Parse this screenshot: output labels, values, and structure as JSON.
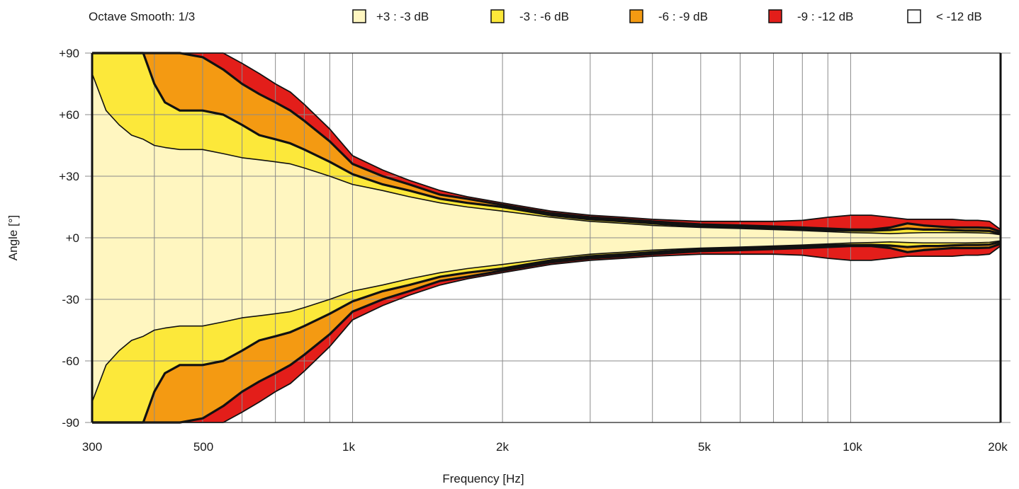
{
  "header": {
    "smoothing_label": "Octave Smooth: 1/3"
  },
  "legend": [
    {
      "label": "+3 : -3 dB",
      "color": "#FFF6C0"
    },
    {
      "label": "-3 : -6 dB",
      "color": "#FCE83A"
    },
    {
      "label": "-6 : -9 dB",
      "color": "#F49A12"
    },
    {
      "label": "-9 : -12 dB",
      "color": "#E31E1A"
    },
    {
      "label": "< -12 dB",
      "color": "#FFFFFF"
    }
  ],
  "chart_data": {
    "type": "area",
    "plot_kind": "directivity-contour",
    "title": "",
    "xlabel": "Frequency [Hz]",
    "ylabel": "Angle [°]",
    "x_scale": "log",
    "xlim": [
      300,
      20000
    ],
    "ylim": [
      -90,
      90
    ],
    "grid": true,
    "legend_position": "top",
    "x_ticks": [
      300,
      500,
      1000,
      2000,
      5000,
      10000,
      20000
    ],
    "x_tick_labels": [
      "300",
      "500",
      "1k",
      "2k",
      "5k",
      "10k",
      "20k"
    ],
    "y_ticks": [
      90,
      60,
      30,
      0,
      -30,
      -60,
      -90
    ],
    "y_tick_labels": [
      "+90",
      "+60",
      "+30",
      "+0",
      "-30",
      "-60",
      "-90"
    ],
    "frequencies": [
      300,
      320,
      340,
      360,
      380,
      400,
      420,
      450,
      500,
      550,
      600,
      650,
      700,
      750,
      800,
      900,
      1000,
      1150,
      1300,
      1500,
      1700,
      2000,
      2500,
      3000,
      3500,
      4000,
      5000,
      6000,
      7000,
      8000,
      9000,
      10000,
      11000,
      12000,
      13000,
      14000,
      15000,
      16000,
      17000,
      18000,
      19000,
      20000
    ],
    "series": [
      {
        "name": "+3 : -3 dB",
        "values": [
          80,
          62,
          55,
          50,
          48,
          45,
          44,
          43,
          43,
          41,
          39,
          38,
          37,
          36,
          34,
          30,
          26,
          23,
          20,
          17,
          15,
          13,
          10,
          8,
          7,
          6,
          5,
          4.5,
          4,
          3.5,
          3,
          2.5,
          2.3,
          2,
          2.3,
          2.5,
          2.5,
          2.5,
          2.5,
          2.4,
          2.2,
          1.5
        ]
      },
      {
        "name": "-3 : -6 dB",
        "values": [
          90,
          90,
          90,
          90,
          90,
          75,
          66,
          62,
          62,
          60,
          55,
          50,
          48,
          46,
          43,
          37,
          31,
          26,
          23,
          19,
          17,
          15,
          11,
          9,
          8,
          7,
          5.5,
          5,
          4.5,
          4,
          3.7,
          3.5,
          3.5,
          3.8,
          4.5,
          4,
          4,
          3.7,
          3.5,
          3.5,
          3.3,
          2
        ]
      },
      {
        "name": "-6 : -9 dB",
        "values": [
          90,
          90,
          90,
          90,
          90,
          90,
          90,
          90,
          88,
          82,
          75,
          70,
          66,
          62,
          57,
          47,
          36,
          30,
          26,
          21,
          19,
          16,
          12,
          10,
          9,
          8,
          6.5,
          6,
          5.5,
          5,
          4.5,
          4,
          4,
          5,
          7,
          6,
          5.5,
          5,
          5,
          5,
          4.8,
          3
        ]
      },
      {
        "name": "-9 : -12 dB",
        "values": [
          90,
          90,
          90,
          90,
          90,
          90,
          90,
          90,
          90,
          90,
          85,
          80,
          75,
          71,
          65,
          53,
          40,
          33,
          28,
          23,
          20,
          17,
          13,
          11,
          10,
          9,
          8,
          8,
          8,
          8.5,
          10,
          11,
          11,
          10,
          9,
          9,
          9,
          9,
          8.5,
          8.5,
          8,
          4
        ]
      }
    ],
    "symmetric_about_zero": true
  }
}
